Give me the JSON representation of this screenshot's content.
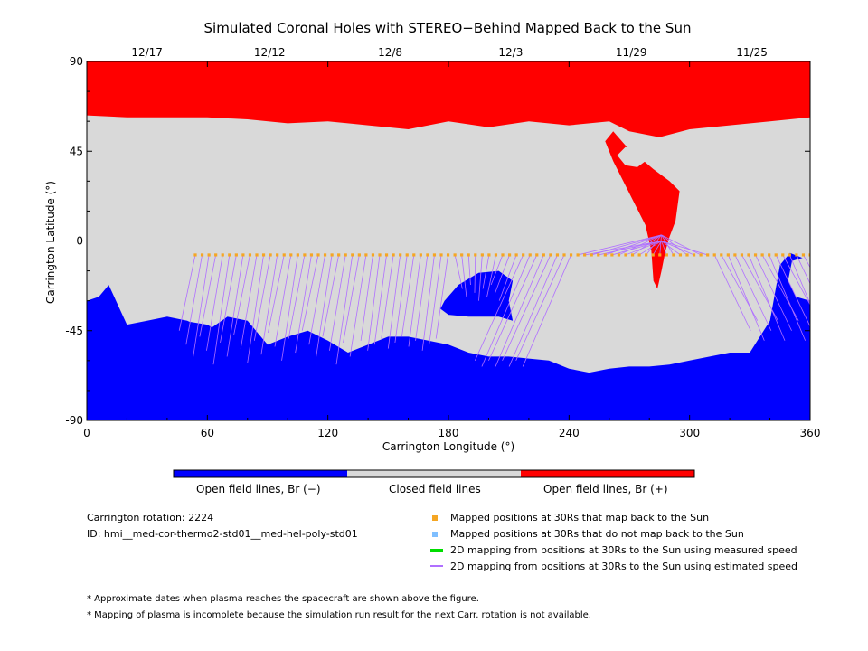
{
  "figure": {
    "title": "Simulated Coronal Holes with STEREO−Behind Mapped Back to the Sun",
    "x_axis_label": "Carrington Longitude (°)",
    "y_axis_label": "Carrington Latitude (°)"
  },
  "chart_data": {
    "type": "map",
    "title": "Simulated Coronal Holes with STEREO−Behind Mapped Back to the Sun",
    "xlabel": "Carrington Longitude (°)",
    "ylabel": "Carrington Latitude (°)",
    "xlim": [
      0,
      360
    ],
    "ylim": [
      -90,
      90
    ],
    "x_ticks": [
      0,
      60,
      120,
      180,
      240,
      300,
      360
    ],
    "y_ticks": [
      -90,
      -45,
      0,
      45,
      90
    ],
    "top_date_ticks": [
      {
        "label": "12/17",
        "lon": 30
      },
      {
        "label": "12/12",
        "lon": 91
      },
      {
        "label": "12/8",
        "lon": 151
      },
      {
        "label": "12/3",
        "lon": 211
      },
      {
        "label": "11/29",
        "lon": 271
      },
      {
        "label": "11/25",
        "lon": 331
      }
    ],
    "colors": {
      "open_negative": "#0000ff",
      "closed": "#d9d9d9",
      "open_positive": "#ff0000",
      "mapped_point": "#f5a623",
      "unmapped_point": "#7fbfff",
      "measured_speed_line": "#00dd00",
      "estimated_speed_line": "#b070ff"
    },
    "colorbar": [
      {
        "label": "Open field lines, Br (−)",
        "color": "#0000ff"
      },
      {
        "label": "Closed field lines",
        "color": "#d9d9d9"
      },
      {
        "label": "Open field lines, Br (+)",
        "color": "#ff0000"
      }
    ],
    "mapped_positions": {
      "lat": -7,
      "lon_start": 54,
      "lon_end": 360,
      "lon_step": 3.4
    },
    "north_boundary": [
      [
        0,
        63
      ],
      [
        20,
        62
      ],
      [
        40,
        62
      ],
      [
        60,
        62
      ],
      [
        80,
        61
      ],
      [
        100,
        59
      ],
      [
        120,
        60
      ],
      [
        140,
        58
      ],
      [
        160,
        56
      ],
      [
        180,
        60
      ],
      [
        200,
        57
      ],
      [
        220,
        60
      ],
      [
        240,
        58
      ],
      [
        260,
        60
      ],
      [
        270,
        55
      ],
      [
        285,
        52
      ],
      [
        300,
        56
      ],
      [
        320,
        58
      ],
      [
        340,
        60
      ],
      [
        360,
        62
      ]
    ],
    "south_boundary": [
      [
        0,
        -15
      ],
      [
        10,
        -20
      ],
      [
        20,
        -42
      ],
      [
        30,
        -40
      ],
      [
        40,
        -38
      ],
      [
        50,
        -40
      ],
      [
        60,
        -45
      ],
      [
        70,
        -38
      ],
      [
        80,
        -40
      ],
      [
        90,
        -52
      ],
      [
        100,
        -48
      ],
      [
        110,
        -45
      ],
      [
        120,
        -50
      ],
      [
        130,
        -56
      ],
      [
        140,
        -52
      ],
      [
        150,
        -48
      ],
      [
        160,
        -48
      ],
      [
        170,
        -50
      ],
      [
        180,
        -52
      ],
      [
        190,
        -56
      ],
      [
        200,
        -58
      ],
      [
        210,
        -58
      ],
      [
        220,
        -59
      ],
      [
        230,
        -60
      ],
      [
        240,
        -64
      ],
      [
        250,
        -66
      ],
      [
        260,
        -64
      ],
      [
        270,
        -63
      ],
      [
        280,
        -63
      ],
      [
        290,
        -62
      ],
      [
        300,
        -60
      ],
      [
        310,
        -58
      ],
      [
        320,
        -56
      ],
      [
        330,
        -56
      ],
      [
        340,
        -40
      ],
      [
        345,
        -12
      ],
      [
        350,
        -6
      ],
      [
        360,
        -10
      ]
    ],
    "positive_tongue": [
      [
        262,
        55
      ],
      [
        268,
        48
      ],
      [
        275,
        42
      ],
      [
        282,
        36
      ],
      [
        290,
        30
      ],
      [
        295,
        25
      ],
      [
        293,
        10
      ],
      [
        290,
        2
      ],
      [
        288,
        -5
      ],
      [
        286,
        -15
      ],
      [
        284,
        -24
      ],
      [
        282,
        -20
      ],
      [
        281,
        -5
      ],
      [
        278,
        8
      ],
      [
        272,
        20
      ],
      [
        262,
        40
      ],
      [
        258,
        50
      ]
    ],
    "positive_hole_gray": [
      [
        264,
        43
      ],
      [
        268,
        47
      ],
      [
        274,
        47
      ],
      [
        278,
        40
      ],
      [
        274,
        37
      ],
      [
        268,
        38
      ]
    ],
    "negative_holes": [
      [
        [
          40,
          -45
        ],
        [
          48,
          -40
        ],
        [
          60,
          -42
        ],
        [
          70,
          -48
        ],
        [
          66,
          -54
        ],
        [
          56,
          -56
        ],
        [
          44,
          -55
        ],
        [
          40,
          -50
        ]
      ],
      [
        [
          178,
          -30
        ],
        [
          185,
          -22
        ],
        [
          195,
          -16
        ],
        [
          205,
          -15
        ],
        [
          212,
          -20
        ],
        [
          210,
          -30
        ],
        [
          212,
          -40
        ],
        [
          205,
          -38
        ],
        [
          190,
          -38
        ],
        [
          180,
          -37
        ],
        [
          176,
          -34
        ]
      ]
    ],
    "gray_holes_south": [
      [
        [
          0,
          -15
        ],
        [
          8,
          -12
        ],
        [
          12,
          -15
        ],
        [
          11,
          -22
        ],
        [
          6,
          -28
        ],
        [
          0,
          -30
        ]
      ],
      [
        [
          351,
          -10
        ],
        [
          358,
          -8
        ],
        [
          360,
          -8
        ],
        [
          360,
          -30
        ],
        [
          353,
          -28
        ],
        [
          349,
          -20
        ]
      ]
    ]
  },
  "colorbar_labels": {
    "open_negative": "Open field lines, Br (−)",
    "closed": "Closed field lines",
    "open_positive": "Open field lines, Br (+)"
  },
  "info": {
    "carrington_rotation": "Carrington rotation: 2224",
    "id": "ID: hmi__med-cor-thermo2-std01__med-hel-poly-std01"
  },
  "legend": {
    "mapped": "Mapped positions at 30Rs that map back to the Sun",
    "not_mapped": "Mapped positions at 30Rs that do not map back to the Sun",
    "measured": "2D mapping from positions at 30Rs to the Sun using measured speed",
    "estimated": "2D mapping from positions at 30Rs to the Sun using estimated speed"
  },
  "notes": {
    "note1": "* Approximate dates when plasma reaches the spacecraft are shown above the figure.",
    "note2": "* Mapping of plasma is incomplete because the simulation run result for the next Carr. rotation is not available."
  }
}
